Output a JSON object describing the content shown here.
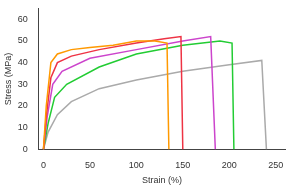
{
  "chart_data": {
    "type": "line",
    "x_label": "Strain (%)",
    "y_label": "Stress (MPa)",
    "xlim": [
      -5,
      260
    ],
    "xticks": [
      0,
      50,
      100,
      150,
      200,
      250
    ],
    "ylim": [
      0,
      65
    ],
    "yticks": [
      0,
      10,
      20,
      30,
      40,
      50,
      60
    ],
    "grid": false,
    "series": [
      {
        "color": "#ff9900",
        "x": [
          0,
          3,
          8,
          15,
          30,
          50,
          75,
          100,
          120,
          133,
          135
        ],
        "values": [
          0,
          20,
          40,
          44,
          46,
          47,
          48,
          50,
          50,
          49,
          0
        ]
      },
      {
        "color": "#ee3344",
        "x": [
          0,
          3,
          8,
          15,
          30,
          60,
          100,
          130,
          148,
          150
        ],
        "values": [
          0,
          15,
          33,
          40,
          43,
          46,
          49,
          51,
          52,
          0
        ]
      },
      {
        "color": "#cc44cc",
        "x": [
          0,
          4,
          10,
          20,
          50,
          100,
          150,
          180,
          185
        ],
        "values": [
          0,
          15,
          30,
          36,
          42,
          46,
          50,
          52,
          0
        ]
      },
      {
        "color": "#22cc33",
        "x": [
          0,
          5,
          12,
          25,
          60,
          100,
          150,
          190,
          203,
          205
        ],
        "values": [
          0,
          12,
          24,
          30,
          38,
          44,
          48,
          50,
          49,
          0
        ]
      },
      {
        "color": "#aaaaaa",
        "x": [
          0,
          5,
          15,
          30,
          60,
          100,
          150,
          200,
          235,
          240
        ],
        "values": [
          0,
          8,
          16,
          22,
          28,
          32,
          36,
          39,
          41,
          0
        ]
      }
    ]
  }
}
